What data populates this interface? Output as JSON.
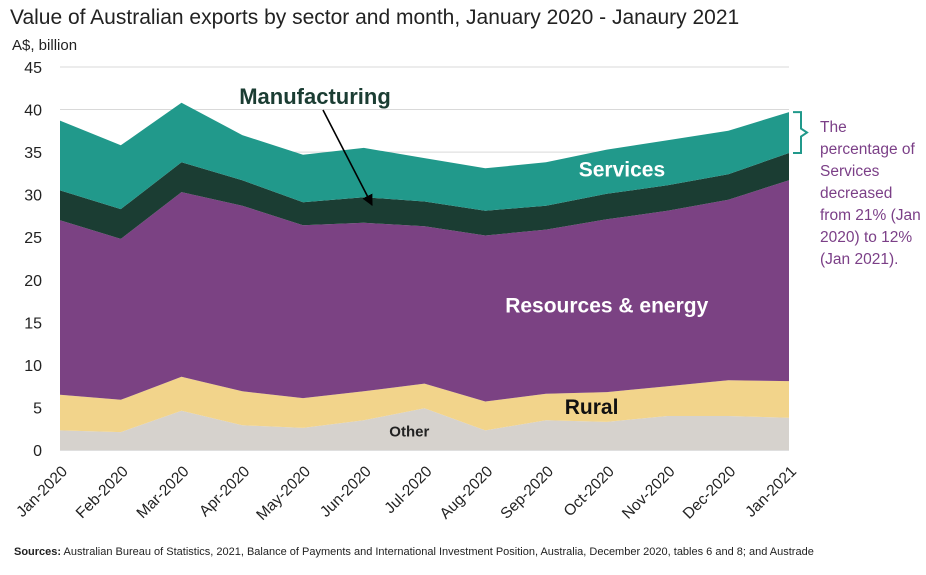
{
  "chart_data": {
    "type": "area",
    "stacked": true,
    "title": "Value of Australian exports by sector and month, January 2020 - Janaury 2021",
    "ylabel": "A$, billion",
    "xlabel": "",
    "ylim": [
      0,
      45
    ],
    "yticks": [
      0,
      5,
      10,
      15,
      20,
      25,
      30,
      35,
      40,
      45
    ],
    "grid": true,
    "categories": [
      "Jan-2020",
      "Feb-2020",
      "Mar-2020",
      "Apr-2020",
      "May-2020",
      "Jun-2020",
      "Jul-2020",
      "Aug-2020",
      "Sep-2020",
      "Oct-2020",
      "Nov-2020",
      "Dec-2020",
      "Jan-2021"
    ],
    "series": [
      {
        "name": "Other",
        "color": "#d6d2cd",
        "label_color": "#222222",
        "values": [
          2.3,
          2.1,
          4.6,
          2.9,
          2.6,
          3.5,
          4.9,
          2.3,
          3.5,
          3.3,
          4.0,
          4.0,
          3.8
        ]
      },
      {
        "name": "Rural",
        "color": "#f2d48b",
        "label_color": "#111111",
        "values": [
          4.2,
          3.8,
          4.0,
          4.0,
          3.5,
          3.4,
          2.9,
          3.4,
          3.1,
          3.5,
          3.5,
          4.2,
          4.3
        ]
      },
      {
        "name": "Resources & energy",
        "color": "#7b4283",
        "label_color": "#ffffff",
        "values": [
          20.5,
          18.9,
          21.7,
          21.8,
          20.3,
          19.8,
          18.5,
          19.5,
          19.3,
          20.3,
          20.6,
          21.2,
          23.6
        ]
      },
      {
        "name": "Manufacturing",
        "color": "#1b3d33",
        "label_color": "#1b3d33",
        "values": [
          3.5,
          3.5,
          3.5,
          3.0,
          2.7,
          3.0,
          2.9,
          2.9,
          2.8,
          3.0,
          3.0,
          3.0,
          3.2
        ]
      },
      {
        "name": "Services",
        "color": "#21998b",
        "label_color": "#ffffff",
        "values": [
          8.2,
          7.5,
          7.0,
          5.3,
          5.6,
          5.8,
          5.1,
          5.0,
          5.1,
          5.2,
          5.3,
          5.1,
          4.8
        ]
      }
    ],
    "annotation": "The percentage of Services decreased from 21% (Jan 2020) to 12% (Jan 2021).",
    "annotation_color": "#7b3f87"
  },
  "source": {
    "prefix": "Sources:",
    "text": "Australian Bureau of Statistics, 2021, Balance of Payments and International Investment Position, Australia, December 2020, tables 6 and 8; and Austrade"
  }
}
